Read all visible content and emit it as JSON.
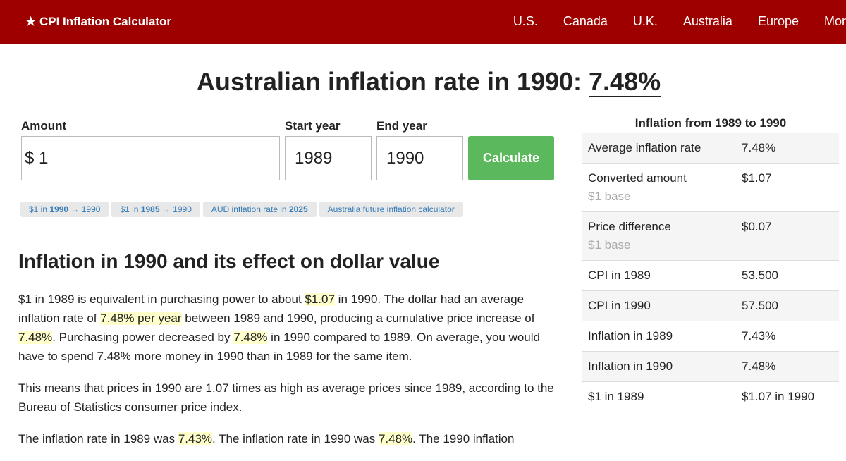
{
  "nav": {
    "brand": "★ CPI Inflation Calculator",
    "links": [
      "U.S.",
      "Canada",
      "U.K.",
      "Australia",
      "Europe",
      "More"
    ]
  },
  "heading": {
    "prefix": "Australian inflation rate in 1990:",
    "value": "7.48%"
  },
  "form": {
    "amount_label": "Amount",
    "currency": "$",
    "amount": "1",
    "start_label": "Start year",
    "start": "1989",
    "end_label": "End year",
    "end": "1990",
    "button": "Calculate"
  },
  "chips": [
    [
      "$1 in ",
      {
        "b": "1990"
      },
      " → 1990"
    ],
    [
      "$1 in ",
      {
        "b": "1985"
      },
      " → 1990"
    ],
    [
      "AUD inflation rate in ",
      {
        "b": "2025"
      }
    ],
    [
      "Australia future inflation calculator"
    ]
  ],
  "section_title": "Inflation in 1990 and its effect on dollar value",
  "paragraphs": [
    [
      "$1 in 1989 is equivalent in purchasing power to about ",
      {
        "hl": "$1.07"
      },
      " in 1990. The dollar had an average inflation rate of ",
      {
        "hl": "7.48% per year"
      },
      " between 1989 and 1990, producing a cumulative price increase of ",
      {
        "hl": "7.48%"
      },
      ". Purchasing power decreased by ",
      {
        "hl": "7.48%"
      },
      " in 1990 compared to 1989. On average, you would have to spend 7.48% more money in 1990 than in 1989 for the same item."
    ],
    [
      "This means that prices in 1990 are 1.07 times as high as average prices since 1989, according to the Bureau of Statistics consumer price index."
    ],
    [
      "The inflation rate in 1989 was ",
      {
        "hl": "7.43%"
      },
      ". The inflation rate in 1990 was ",
      {
        "hl": "7.48%"
      },
      ". The 1990 inflation"
    ]
  ],
  "table": {
    "title": "Inflation from 1989 to 1990",
    "rows": [
      {
        "label": "Average inflation rate",
        "value": "7.48%"
      },
      {
        "label": "Converted amount",
        "note": "$1 base",
        "value": "$1.07"
      },
      {
        "label": "Price difference",
        "note": "$1 base",
        "value": "$0.07"
      },
      {
        "label": "CPI in 1989",
        "value": "53.500"
      },
      {
        "label": "CPI in 1990",
        "value": "57.500"
      },
      {
        "label": "Inflation in 1989",
        "value": "7.43%"
      },
      {
        "label": "Inflation in 1990",
        "value": "7.48%"
      },
      {
        "label": "$1 in 1989",
        "value": "$1.07 in 1990"
      }
    ]
  }
}
